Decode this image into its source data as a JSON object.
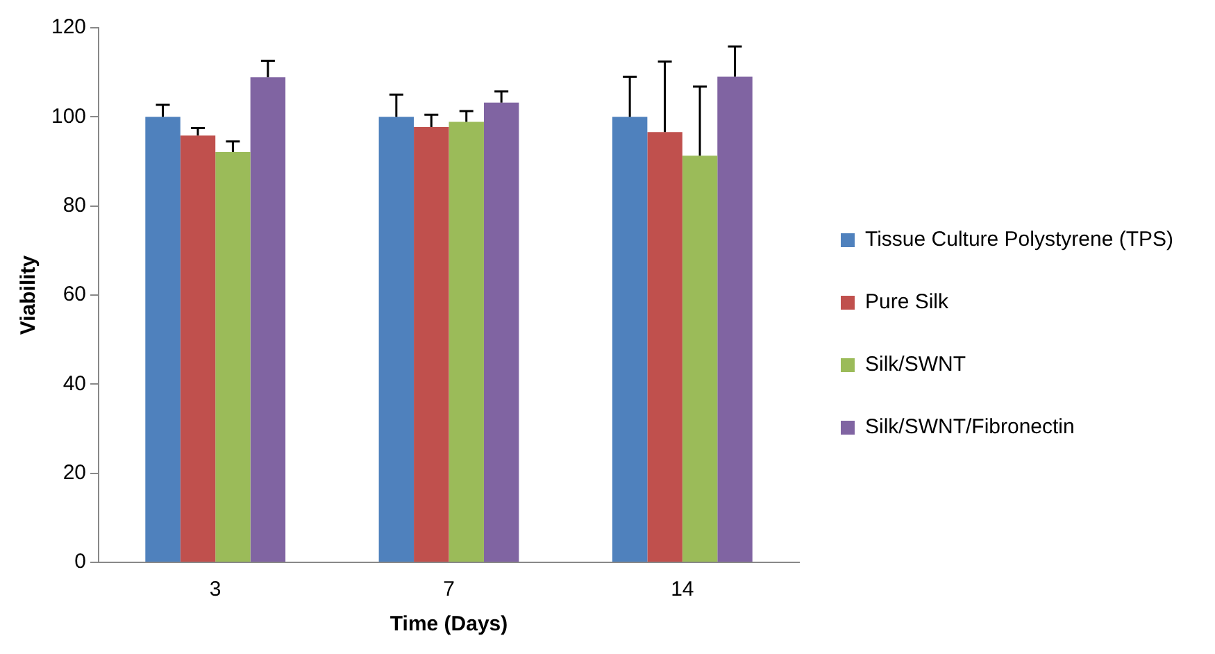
{
  "chart_data": {
    "type": "bar",
    "xlabel": "Time (Days)",
    "ylabel": "Viability",
    "categories": [
      "3",
      "7",
      "14"
    ],
    "series": [
      {
        "name": "Tissue Culture Polystyrene (TPS)",
        "color": "#4f81bd",
        "values": [
          100,
          100,
          100
        ],
        "errors": [
          [
            100,
            102.7
          ],
          [
            100,
            105
          ],
          [
            100,
            109
          ]
        ]
      },
      {
        "name": "Pure Silk",
        "color": "#c0504d",
        "values": [
          95.8,
          97.7,
          96.6
        ],
        "errors": [
          [
            95.8,
            97.5
          ],
          [
            97.7,
            100.5
          ],
          [
            96.6,
            112.4
          ]
        ]
      },
      {
        "name": "Silk/SWNT",
        "color": "#9bbb59",
        "values": [
          92.1,
          98.9,
          91.3
        ],
        "errors": [
          [
            92.1,
            94.5
          ],
          [
            98.9,
            101.3
          ],
          [
            91.3,
            106.8
          ]
        ]
      },
      {
        "name": "Silk/SWNT/Fibronectin",
        "color": "#8064a2",
        "values": [
          108.9,
          103.2,
          109
        ],
        "errors": [
          [
            108.9,
            112.6
          ],
          [
            103.2,
            105.7
          ],
          [
            109,
            115.8
          ]
        ]
      }
    ],
    "ylim": [
      0,
      120
    ],
    "yticks": [
      0,
      20,
      40,
      60,
      80,
      100,
      120
    ],
    "grid": false,
    "legend": "right"
  }
}
